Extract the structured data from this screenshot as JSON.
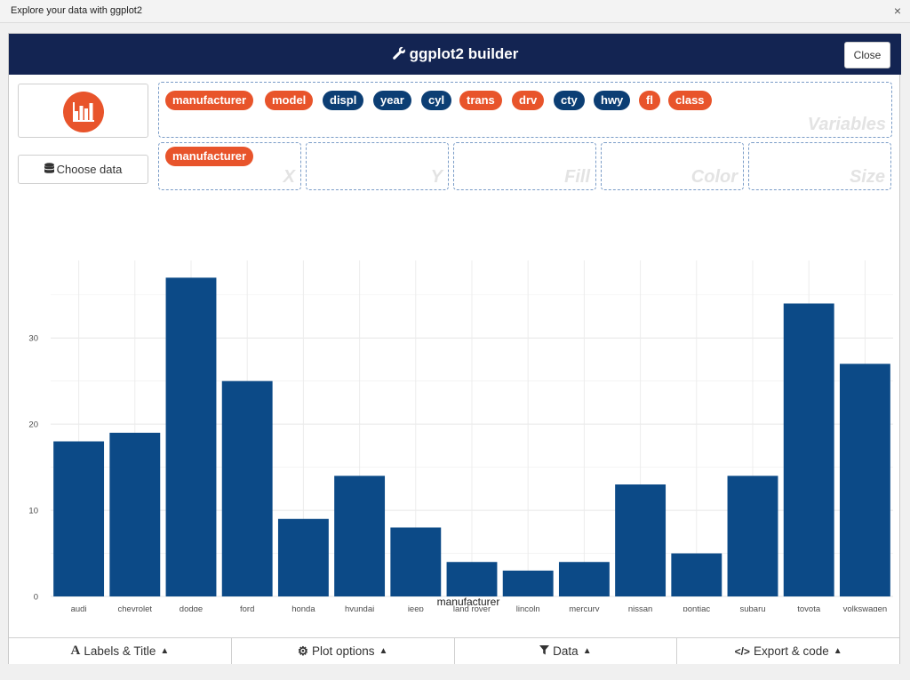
{
  "window": {
    "title": "Explore your data with ggplot2",
    "close_glyph": "×"
  },
  "header": {
    "title": "ggplot2 builder",
    "icon": "wrench-icon",
    "close_label": "Close"
  },
  "sidebar": {
    "logo_icon": "bar-chart-icon",
    "choose_data_label": "Choose data",
    "choose_data_icon": "database-icon"
  },
  "variables": [
    {
      "name": "manufacturer",
      "type": "discrete"
    },
    {
      "name": "model",
      "type": "discrete"
    },
    {
      "name": "displ",
      "type": "continuous"
    },
    {
      "name": "year",
      "type": "continuous"
    },
    {
      "name": "cyl",
      "type": "continuous"
    },
    {
      "name": "trans",
      "type": "discrete"
    },
    {
      "name": "drv",
      "type": "discrete"
    },
    {
      "name": "cty",
      "type": "continuous"
    },
    {
      "name": "hwy",
      "type": "continuous"
    },
    {
      "name": "fl",
      "type": "discrete"
    },
    {
      "name": "class",
      "type": "discrete"
    }
  ],
  "dropzones": {
    "variables_label": "Variables",
    "x_label": "X",
    "y_label": "Y",
    "fill_label": "Fill",
    "color_label": "Color",
    "size_label": "Size",
    "x_value": "manufacturer"
  },
  "colors": {
    "discrete": "#e8542b",
    "continuous": "#0c3e74",
    "header": "#132452",
    "bar": "#0c4a87"
  },
  "chart_data": {
    "type": "bar",
    "categories": [
      "audi",
      "chevrolet",
      "dodge",
      "ford",
      "honda",
      "hyundai",
      "jeep",
      "land rover",
      "lincoln",
      "mercury",
      "nissan",
      "pontiac",
      "subaru",
      "toyota",
      "volkswagen"
    ],
    "values": [
      18,
      19,
      37,
      25,
      9,
      14,
      8,
      4,
      3,
      4,
      13,
      5,
      14,
      34,
      27
    ],
    "xlabel": "manufacturer",
    "ylabel": "",
    "ylim": [
      0,
      40
    ],
    "yticks": [
      0,
      10,
      20,
      30
    ],
    "grid": true,
    "bar_color": "#0c4a87"
  },
  "bottom_tabs": [
    {
      "label": "Labels & Title",
      "icon": "font-icon"
    },
    {
      "label": "Plot options",
      "icon": "gears-icon"
    },
    {
      "label": "Data",
      "icon": "filter-icon"
    },
    {
      "label": "Export & code",
      "icon": "code-icon"
    }
  ]
}
